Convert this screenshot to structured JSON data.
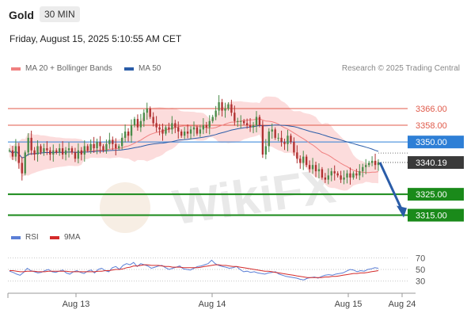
{
  "header": {
    "instrument": "Gold",
    "timeframe": "30 MIN",
    "datetime": "Friday, August 15, 2025 5:10:55 AM CET"
  },
  "legend": {
    "items": [
      {
        "label": "MA 20 + Bollinger Bands",
        "color": "#f08080"
      },
      {
        "label": "MA 50",
        "color": "#2a5ca8"
      }
    ],
    "credit": "Research © 2025 Trading Central"
  },
  "rsi_legend": {
    "items": [
      {
        "label": "RSI",
        "color": "#5b7fd6"
      },
      {
        "label": "9MA",
        "color": "#d42a2a"
      }
    ]
  },
  "watermark": "WikiFX",
  "chart_data": [
    {
      "type": "candlestick",
      "title": "",
      "ylim": [
        3308,
        3380
      ],
      "x_ticks": [
        "Aug 13",
        "Aug 14",
        "Aug 15",
        "Aug 24"
      ],
      "levels": [
        {
          "value": 3366.0,
          "label": "3366.00",
          "style": "resistance-thin",
          "color": "#e05a4a"
        },
        {
          "value": 3358.0,
          "label": "3358.00",
          "style": "resistance-thin",
          "color": "#e05a4a"
        },
        {
          "value": 3350.0,
          "label": "3350.00",
          "style": "pivot",
          "color": "#2e7fd6"
        },
        {
          "value": 3325.0,
          "label": "3325.00",
          "style": "support",
          "color": "#1a8a1a"
        },
        {
          "value": 3315.0,
          "label": "3315.00",
          "style": "support",
          "color": "#1a8a1a"
        }
      ],
      "last_price": {
        "value": 3340.19,
        "label": "3340.19"
      },
      "closes": [
        3346,
        3343,
        3348,
        3340,
        3335,
        3345,
        3352,
        3346,
        3344,
        3348,
        3345,
        3347,
        3346,
        3344,
        3346,
        3345,
        3347,
        3344,
        3346,
        3347,
        3345,
        3342,
        3346,
        3344,
        3348,
        3346,
        3349,
        3347,
        3350,
        3348,
        3346,
        3349,
        3351,
        3349,
        3347,
        3348,
        3352,
        3355,
        3353,
        3358,
        3361,
        3357,
        3360,
        3364,
        3366,
        3362,
        3359,
        3357,
        3356,
        3354,
        3357,
        3356,
        3359,
        3357,
        3355,
        3353,
        3355,
        3354,
        3356,
        3357,
        3354,
        3356,
        3358,
        3357,
        3360,
        3362,
        3365,
        3369,
        3365,
        3366,
        3368,
        3364,
        3360,
        3360,
        3360,
        3359,
        3358,
        3357,
        3358,
        3362,
        3358,
        3344,
        3348,
        3355,
        3356,
        3352,
        3352,
        3350,
        3349,
        3353,
        3350,
        3345,
        3342,
        3340,
        3343,
        3339,
        3337,
        3339,
        3336,
        3337,
        3333,
        3332,
        3334,
        3336,
        3335,
        3334,
        3332,
        3333,
        3335,
        3333,
        3335,
        3334,
        3336,
        3338,
        3339,
        3340,
        3341,
        3339,
        3340.19
      ],
      "trend_arrow": {
        "from_value": 3340.19,
        "to_value": 3315.0,
        "color": "#2a5ca8"
      }
    },
    {
      "type": "line",
      "title": "",
      "ylim": [
        20,
        80
      ],
      "y_ticks": [
        70,
        50,
        30
      ],
      "series": [
        {
          "name": "RSI",
          "color": "#5b7fd6",
          "values": [
            47,
            45,
            42,
            40,
            45,
            52,
            48,
            46,
            44,
            45,
            48,
            50,
            46,
            45,
            47,
            49,
            44,
            42,
            46,
            48,
            45,
            43,
            47,
            49,
            44,
            50,
            52,
            48,
            46,
            53,
            55,
            50,
            57,
            60,
            58,
            62,
            55,
            60,
            58,
            56,
            52,
            54,
            56,
            57,
            53,
            50,
            52,
            54,
            56,
            51,
            50,
            49,
            52,
            55,
            56,
            58,
            60,
            66,
            60,
            57,
            55,
            54,
            52,
            53,
            55,
            50,
            46,
            47,
            45,
            46,
            44,
            43,
            42,
            44,
            45,
            46,
            42,
            40,
            38,
            37,
            36,
            35,
            33,
            32,
            35,
            36,
            37,
            35,
            38,
            40,
            41,
            40,
            42,
            43,
            44,
            47,
            50,
            49,
            46,
            48,
            47,
            50,
            51,
            53,
            52
          ]
        },
        {
          "name": "9MA",
          "color": "#d42a2a",
          "values": [
            48,
            48,
            47,
            46,
            46,
            47,
            47,
            47,
            46,
            46,
            46,
            47,
            47,
            47,
            47,
            47,
            47,
            46,
            46,
            46,
            46,
            46,
            46,
            46,
            46,
            47,
            47,
            48,
            48,
            49,
            50,
            50,
            51,
            53,
            54,
            56,
            56,
            57,
            58,
            58,
            57,
            57,
            57,
            56,
            55,
            55,
            54,
            54,
            54,
            53,
            53,
            53,
            53,
            53,
            54,
            55,
            56,
            57,
            58,
            58,
            57,
            57,
            56,
            55,
            55,
            54,
            53,
            52,
            51,
            50,
            49,
            48,
            47,
            47,
            46,
            45,
            44,
            43,
            42,
            41,
            40,
            39,
            38,
            37,
            36,
            36,
            36,
            36,
            36,
            37,
            37,
            38,
            38,
            39,
            40,
            41,
            42,
            43,
            43,
            44,
            44,
            45,
            46,
            47,
            48
          ]
        }
      ]
    }
  ]
}
